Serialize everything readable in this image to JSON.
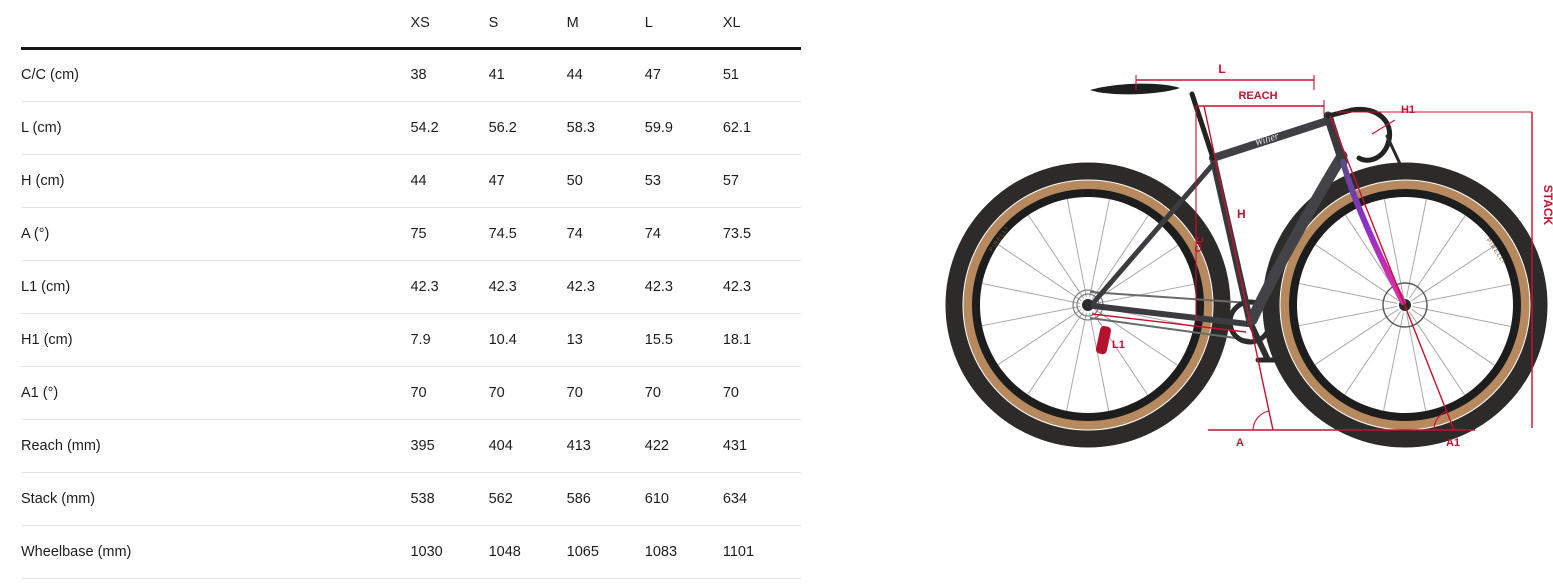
{
  "chart_data": {
    "type": "table",
    "columns": [
      "XS",
      "S",
      "M",
      "L",
      "XL"
    ],
    "rows": [
      {
        "label": "C/C (cm)",
        "values": [
          "38",
          "41",
          "44",
          "47",
          "51"
        ]
      },
      {
        "label": "L (cm)",
        "values": [
          "54.2",
          "56.2",
          "58.3",
          "59.9",
          "62.1"
        ]
      },
      {
        "label": "H (cm)",
        "values": [
          "44",
          "47",
          "50",
          "53",
          "57"
        ]
      },
      {
        "label": "A (°)",
        "values": [
          "75",
          "74.5",
          "74",
          "74",
          "73.5"
        ]
      },
      {
        "label": "L1 (cm)",
        "values": [
          "42.3",
          "42.3",
          "42.3",
          "42.3",
          "42.3"
        ]
      },
      {
        "label": "H1 (cm)",
        "values": [
          "7.9",
          "10.4",
          "13",
          "15.5",
          "18.1"
        ]
      },
      {
        "label": "A1 (°)",
        "values": [
          "70",
          "70",
          "70",
          "70",
          "70"
        ]
      },
      {
        "label": "Reach (mm)",
        "values": [
          "395",
          "404",
          "413",
          "422",
          "431"
        ]
      },
      {
        "label": "Stack (mm)",
        "values": [
          "538",
          "562",
          "586",
          "610",
          "634"
        ]
      },
      {
        "label": "Wheelbase (mm)",
        "values": [
          "1030",
          "1048",
          "1065",
          "1083",
          "1101"
        ]
      }
    ]
  },
  "diagram": {
    "annotation_color": "#c8102e",
    "labels": {
      "l": "L",
      "reach": "REACH",
      "h1": "H1",
      "stack": "STACK",
      "h": "H",
      "cc": "C/C",
      "l1": "L1",
      "a": "A",
      "a1": "A1"
    },
    "frame_logo": "Wilier",
    "tire_brand": "PIRELLI"
  }
}
